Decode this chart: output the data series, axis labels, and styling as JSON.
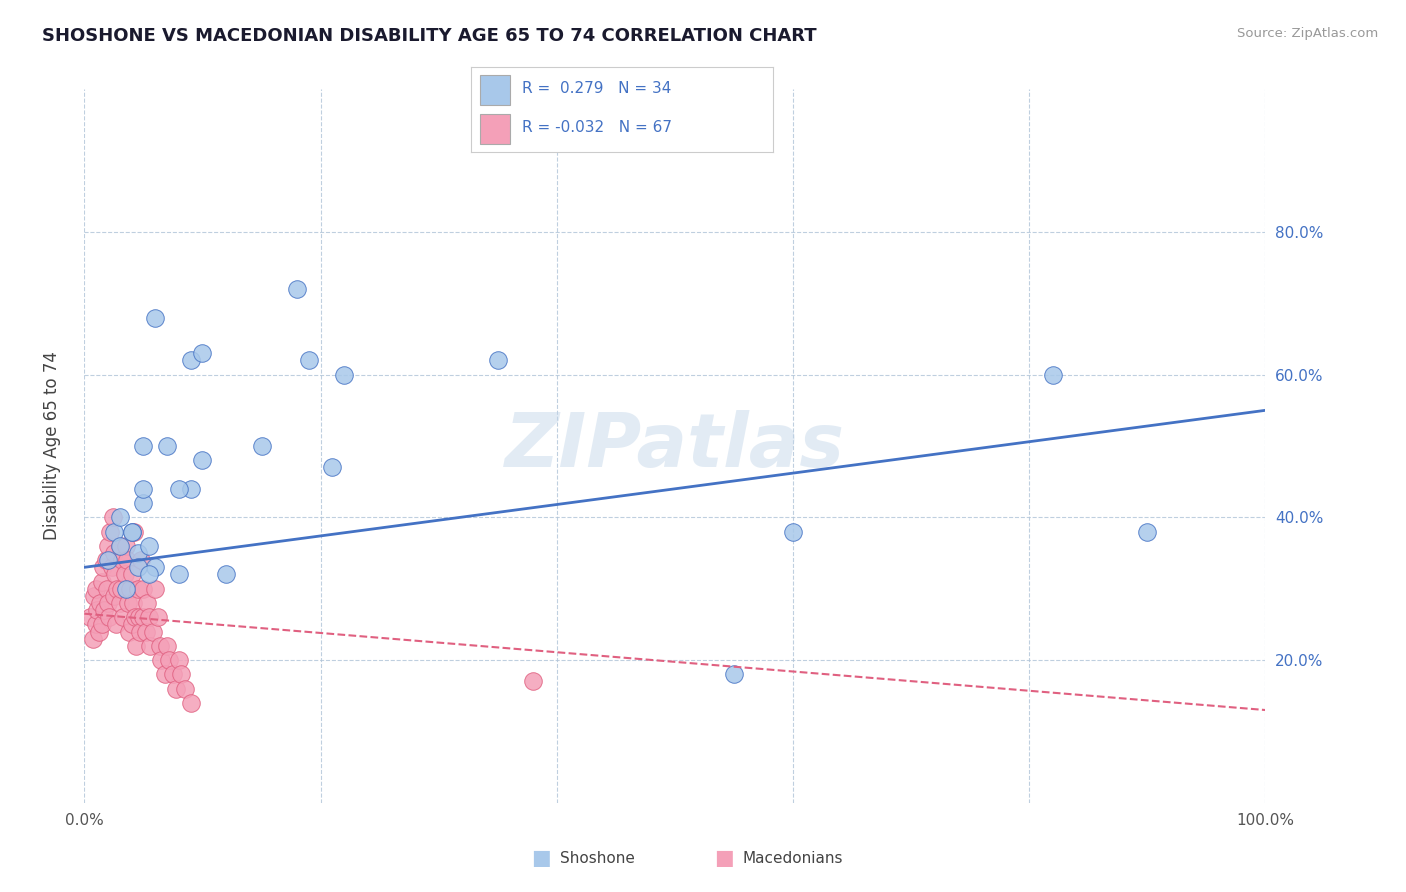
{
  "title": "SHOSHONE VS MACEDONIAN DISABILITY AGE 65 TO 74 CORRELATION CHART",
  "source": "Source: ZipAtlas.com",
  "ylabel": "Disability Age 65 to 74",
  "xlim": [
    0.0,
    1.0
  ],
  "ylim": [
    0.0,
    1.0
  ],
  "xticks": [
    0.0,
    0.2,
    0.4,
    0.6,
    0.8,
    1.0
  ],
  "xticklabels": [
    "0.0%",
    "",
    "",
    "",
    "",
    "100.0%"
  ],
  "yticks": [
    0.2,
    0.4,
    0.6,
    0.8
  ],
  "yticklabels": [
    "20.0%",
    "40.0%",
    "60.0%",
    "80.0%"
  ],
  "shoshone_color": "#a8c8ea",
  "macedonian_color": "#f4a0b8",
  "shoshone_edge": "#4472c4",
  "macedonian_edge": "#e06080",
  "shoshone_line": "#4472c4",
  "macedonian_line": "#e06080",
  "watermark": "ZIPatlas",
  "shoshone_x": [
    0.02,
    0.025,
    0.03,
    0.04,
    0.045,
    0.05,
    0.055,
    0.06,
    0.03,
    0.035,
    0.04,
    0.045,
    0.05,
    0.055,
    0.08,
    0.09,
    0.1,
    0.12,
    0.15,
    0.18,
    0.19,
    0.22,
    0.21,
    0.35,
    0.55,
    0.6,
    0.82,
    0.9,
    0.05,
    0.06,
    0.07,
    0.08,
    0.09,
    0.1
  ],
  "shoshone_y": [
    0.34,
    0.38,
    0.4,
    0.38,
    0.35,
    0.42,
    0.36,
    0.33,
    0.36,
    0.3,
    0.38,
    0.33,
    0.44,
    0.32,
    0.32,
    0.44,
    0.48,
    0.32,
    0.5,
    0.72,
    0.62,
    0.6,
    0.47,
    0.62,
    0.18,
    0.38,
    0.6,
    0.38,
    0.5,
    0.68,
    0.5,
    0.44,
    0.62,
    0.63
  ],
  "macedonian_x": [
    0.005,
    0.007,
    0.008,
    0.01,
    0.01,
    0.011,
    0.012,
    0.013,
    0.015,
    0.015,
    0.016,
    0.017,
    0.018,
    0.019,
    0.02,
    0.02,
    0.021,
    0.022,
    0.023,
    0.024,
    0.025,
    0.025,
    0.026,
    0.027,
    0.028,
    0.03,
    0.03,
    0.031,
    0.032,
    0.033,
    0.034,
    0.035,
    0.036,
    0.037,
    0.038,
    0.039,
    0.04,
    0.04,
    0.041,
    0.042,
    0.043,
    0.044,
    0.045,
    0.046,
    0.047,
    0.048,
    0.05,
    0.05,
    0.052,
    0.053,
    0.055,
    0.056,
    0.058,
    0.06,
    0.062,
    0.064,
    0.065,
    0.068,
    0.07,
    0.072,
    0.075,
    0.078,
    0.08,
    0.082,
    0.085,
    0.38,
    0.09
  ],
  "macedonian_y": [
    0.26,
    0.23,
    0.29,
    0.25,
    0.3,
    0.27,
    0.24,
    0.28,
    0.31,
    0.25,
    0.33,
    0.27,
    0.34,
    0.3,
    0.28,
    0.36,
    0.26,
    0.38,
    0.33,
    0.4,
    0.29,
    0.35,
    0.32,
    0.25,
    0.3,
    0.36,
    0.28,
    0.3,
    0.34,
    0.26,
    0.32,
    0.36,
    0.34,
    0.28,
    0.24,
    0.3,
    0.32,
    0.25,
    0.28,
    0.38,
    0.26,
    0.22,
    0.3,
    0.26,
    0.24,
    0.34,
    0.26,
    0.3,
    0.24,
    0.28,
    0.26,
    0.22,
    0.24,
    0.3,
    0.26,
    0.22,
    0.2,
    0.18,
    0.22,
    0.2,
    0.18,
    0.16,
    0.2,
    0.18,
    0.16,
    0.17,
    0.14
  ],
  "shoshone_trend": [
    0.33,
    0.55
  ],
  "macedonian_trend": [
    0.265,
    0.13
  ]
}
